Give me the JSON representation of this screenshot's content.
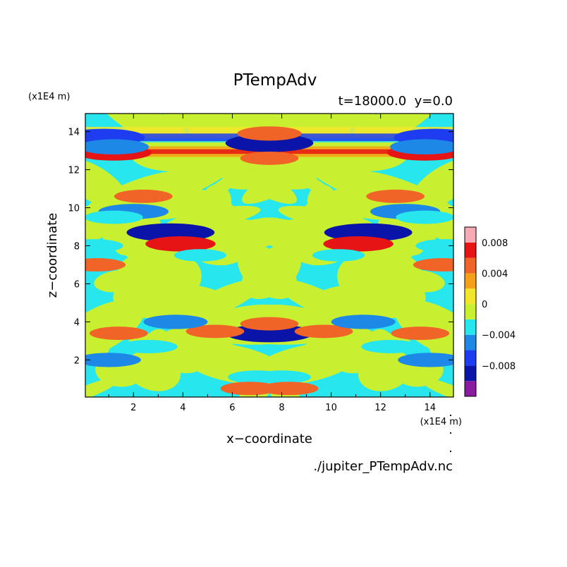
{
  "chart_data": {
    "type": "heatmap",
    "title": "PTempAdv",
    "subtitle": "t=18000.0  y=0.0",
    "xlabel": "x−coordinate",
    "ylabel": "z−coordinate",
    "x_unit": "(x1E4 m)",
    "y_unit": "(x1E4 m)",
    "xlim": [
      0.05,
      14.95
    ],
    "ylim": [
      0.05,
      14.95
    ],
    "x_ticks": [
      2,
      4,
      6,
      8,
      10,
      12,
      14
    ],
    "y_ticks": [
      2,
      4,
      6,
      8,
      10,
      12,
      14
    ],
    "colorbar": {
      "levels": [
        -0.01,
        -0.008,
        -0.006,
        -0.004,
        -0.002,
        0,
        0.002,
        0.004,
        0.006,
        0.008,
        0.01
      ],
      "colors": [
        "#8a1aa0",
        "#0a14a8",
        "#1e3cf0",
        "#1e88e6",
        "#28e6ee",
        "#c8f030",
        "#f2e62c",
        "#f5a018",
        "#f06428",
        "#e61414",
        "#f6aab4"
      ],
      "tick_labels": [
        "−0.008",
        "−0.004",
        "0",
        "0.004",
        "0.008"
      ],
      "tick_values": [
        -0.008,
        -0.004,
        0,
        0.004,
        0.008
      ]
    },
    "features": [
      {
        "x": 7.5,
        "z": 13.4,
        "value": -0.009
      },
      {
        "x": 7.5,
        "z": 13.9,
        "value": 0.005
      },
      {
        "x": 7.5,
        "z": 12.6,
        "value": 0.004
      },
      {
        "x": 0.8,
        "z": 13.7,
        "value": -0.008
      },
      {
        "x": 14.2,
        "z": 13.7,
        "value": -0.008
      },
      {
        "x": 1.2,
        "z": 12.9,
        "value": 0.007
      },
      {
        "x": 13.8,
        "z": 12.9,
        "value": 0.007
      },
      {
        "x": 1.2,
        "z": 13.2,
        "value": -0.006
      },
      {
        "x": 13.8,
        "z": 13.2,
        "value": -0.006
      },
      {
        "x": 7.5,
        "z": 3.4,
        "value": -0.009
      },
      {
        "x": 7.5,
        "z": 3.9,
        "value": 0.004
      },
      {
        "x": 3.5,
        "z": 8.7,
        "value": -0.009
      },
      {
        "x": 11.5,
        "z": 8.7,
        "value": -0.009
      },
      {
        "x": 3.9,
        "z": 8.1,
        "value": 0.006
      },
      {
        "x": 11.1,
        "z": 8.1,
        "value": 0.006
      },
      {
        "x": 2.0,
        "z": 9.8,
        "value": -0.006
      },
      {
        "x": 13.0,
        "z": 9.8,
        "value": -0.006
      },
      {
        "x": 1.2,
        "z": 9.5,
        "value": -0.004
      },
      {
        "x": 13.8,
        "z": 9.5,
        "value": -0.004
      },
      {
        "x": 2.4,
        "z": 10.6,
        "value": 0.004
      },
      {
        "x": 12.6,
        "z": 10.6,
        "value": 0.004
      },
      {
        "x": 7.0,
        "z": 1.1,
        "value": -0.004
      },
      {
        "x": 8.0,
        "z": 1.1,
        "value": -0.004
      },
      {
        "x": 6.7,
        "z": 0.5,
        "value": 0.004
      },
      {
        "x": 8.3,
        "z": 0.5,
        "value": 0.004
      },
      {
        "x": 5.3,
        "z": 3.5,
        "value": 0.004
      },
      {
        "x": 9.7,
        "z": 3.5,
        "value": 0.004
      },
      {
        "x": 2.6,
        "z": 2.7,
        "value": -0.004
      },
      {
        "x": 12.4,
        "z": 2.7,
        "value": -0.004
      },
      {
        "x": 0.5,
        "z": 7.0,
        "value": 0.004
      },
      {
        "x": 14.5,
        "z": 7.0,
        "value": 0.004
      },
      {
        "x": 0.4,
        "z": 8.0,
        "value": -0.004
      },
      {
        "x": 14.6,
        "z": 8.0,
        "value": -0.004
      },
      {
        "x": 4.7,
        "z": 7.5,
        "value": -0.003
      },
      {
        "x": 10.3,
        "z": 7.5,
        "value": -0.003
      },
      {
        "x": 3.7,
        "z": 4.0,
        "value": -0.005
      },
      {
        "x": 11.3,
        "z": 4.0,
        "value": -0.005
      },
      {
        "x": 1.0,
        "z": 2.0,
        "value": -0.005
      },
      {
        "x": 14.0,
        "z": 2.0,
        "value": -0.005
      },
      {
        "x": 1.4,
        "z": 3.4,
        "value": 0.004
      },
      {
        "x": 13.6,
        "z": 3.4,
        "value": 0.004
      }
    ]
  },
  "source_file": "./jupiter_PTempAdv.nc"
}
